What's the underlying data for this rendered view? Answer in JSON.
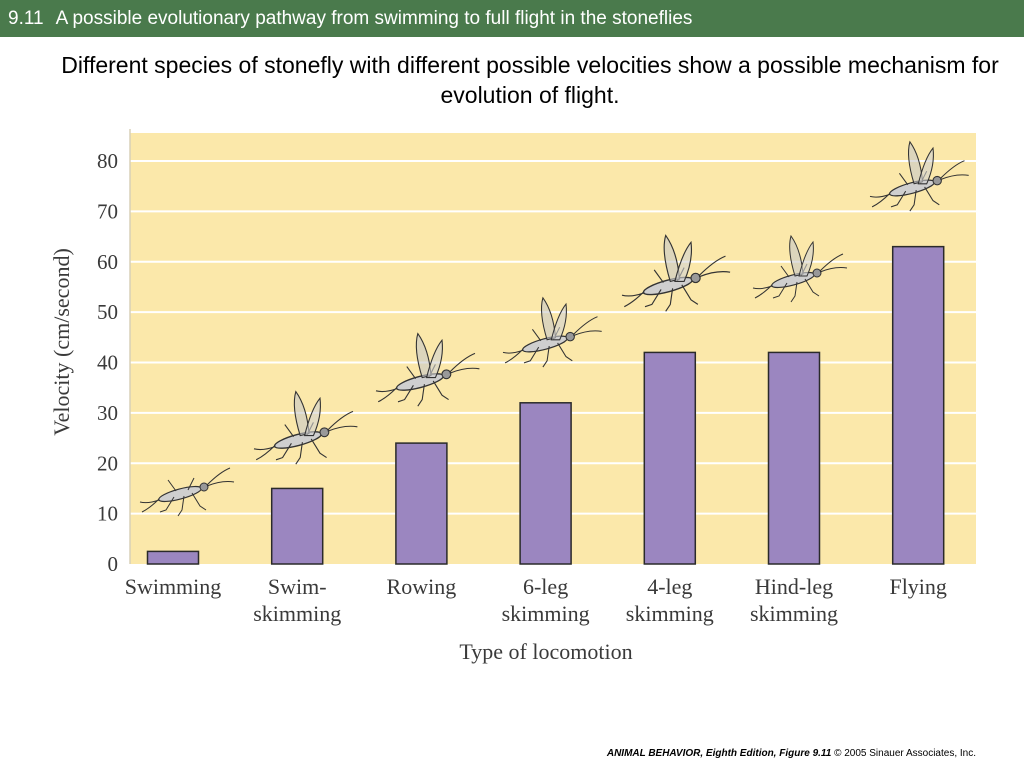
{
  "header": {
    "figure_number": "9.11",
    "title": "A possible evolutionary pathway from swimming to full flight in the stoneflies"
  },
  "subtitle": "Different species of stonefly with different possible velocities show a possible mechanism for evolution of flight.",
  "footer": {
    "book": "ANIMAL BEHAVIOR, Eighth Edition,",
    "figure": "Figure 9.11",
    "copyright": "© 2005 Sinauer Associates, Inc."
  },
  "colors": {
    "header_bg": "#4a7a4c",
    "plot_bg": "#fbe8aa",
    "bar_fill": "#9b86c0",
    "bar_stroke": "#2a2a2a"
  },
  "chart_data": {
    "type": "bar",
    "xlabel": "Type of locomotion",
    "ylabel": "Velocity (cm/second)",
    "ylim": [
      0,
      85
    ],
    "yticks": [
      0,
      10,
      20,
      30,
      40,
      50,
      60,
      70,
      80
    ],
    "grid": true,
    "categories": [
      [
        "Swimming"
      ],
      [
        "Swim-",
        "skimming"
      ],
      [
        "Rowing"
      ],
      [
        "6-leg",
        "skimming"
      ],
      [
        "4-leg",
        "skimming"
      ],
      [
        "Hind-leg",
        "skimming"
      ],
      [
        "Flying"
      ]
    ],
    "values": [
      2.5,
      15,
      24,
      32,
      42,
      42,
      63
    ]
  }
}
